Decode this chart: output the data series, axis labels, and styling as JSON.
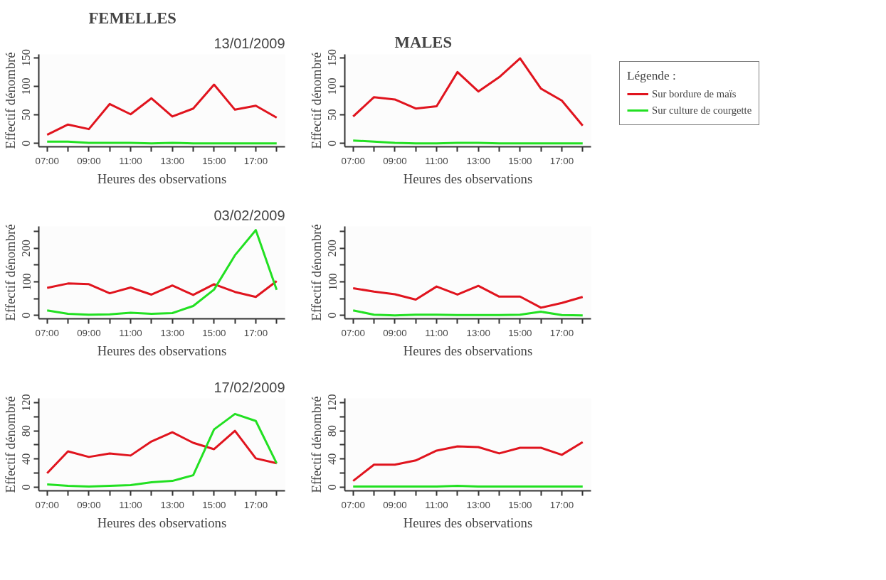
{
  "chart_data": [
    {
      "type": "line",
      "title": "FEMELLES",
      "subtitle": "13/01/2009",
      "xlabel": "Heures des observations",
      "ylabel": "Effectif dénombré",
      "x": [
        7,
        8,
        9,
        10,
        11,
        12,
        13,
        14,
        15,
        16,
        17,
        18
      ],
      "xlim": [
        6.6,
        18.4
      ],
      "xticks": [
        {
          "value": 7,
          "label": "07:00"
        },
        {
          "value": 8,
          "label": null
        },
        {
          "value": 9,
          "label": "09:00"
        },
        {
          "value": 10,
          "label": null
        },
        {
          "value": 11,
          "label": "11:00"
        },
        {
          "value": 12,
          "label": null
        },
        {
          "value": 13,
          "label": "13:00"
        },
        {
          "value": 14,
          "label": null
        },
        {
          "value": 15,
          "label": "15:00"
        },
        {
          "value": 16,
          "label": null
        },
        {
          "value": 17,
          "label": "17:00"
        },
        {
          "value": 18,
          "label": null
        }
      ],
      "ylim": [
        -6,
        156
      ],
      "yticks": [
        0,
        50,
        100,
        150
      ],
      "series": [
        {
          "color": "#e0141e",
          "values": [
            15,
            33,
            25,
            69,
            51,
            79,
            47,
            61,
            103,
            59,
            66,
            45
          ]
        },
        {
          "color": "#22e022",
          "values": [
            3,
            3,
            1,
            1,
            1,
            0,
            1,
            0,
            0,
            0,
            0,
            0
          ]
        }
      ]
    },
    {
      "type": "line",
      "title": "MALES",
      "xlabel": "Heures des observations",
      "ylabel": "Effectif dénombré",
      "legend": "right",
      "legend_title": "Légende :",
      "x": [
        7,
        8,
        9,
        10,
        11,
        12,
        13,
        14,
        15,
        16,
        17,
        18
      ],
      "xlim": [
        6.6,
        18.4
      ],
      "xticks": [
        {
          "value": 7,
          "label": "07:00"
        },
        {
          "value": 8,
          "label": null
        },
        {
          "value": 9,
          "label": "09:00"
        },
        {
          "value": 10,
          "label": null
        },
        {
          "value": 11,
          "label": "11:00"
        },
        {
          "value": 12,
          "label": null
        },
        {
          "value": 13,
          "label": "13:00"
        },
        {
          "value": 14,
          "label": null
        },
        {
          "value": 15,
          "label": "15:00"
        },
        {
          "value": 16,
          "label": null
        },
        {
          "value": 17,
          "label": "17:00"
        },
        {
          "value": 18,
          "label": null
        }
      ],
      "ylim": [
        -6,
        156
      ],
      "yticks": [
        0,
        50,
        100,
        150
      ],
      "series": [
        {
          "name": "Sur bordure de maïs",
          "color": "#e0141e",
          "values": [
            47,
            81,
            77,
            61,
            65,
            125,
            91,
            116,
            149,
            96,
            75,
            31
          ]
        },
        {
          "name": "Sur culture de courgette",
          "color": "#22e022",
          "values": [
            5,
            3,
            1,
            0,
            0,
            1,
            1,
            0,
            0,
            0,
            0,
            0
          ]
        }
      ]
    },
    {
      "type": "line",
      "subtitle": "03/02/2009",
      "xlabel": "Heures des observations",
      "ylabel": "Effectif dénombré",
      "x": [
        7,
        8,
        9,
        10,
        11,
        12,
        13,
        14,
        15,
        16,
        17,
        18
      ],
      "xlim": [
        6.6,
        18.4
      ],
      "xticks": [
        {
          "value": 7,
          "label": "07:00"
        },
        {
          "value": 8,
          "label": null
        },
        {
          "value": 9,
          "label": "09:00"
        },
        {
          "value": 10,
          "label": null
        },
        {
          "value": 11,
          "label": "11:00"
        },
        {
          "value": 12,
          "label": null
        },
        {
          "value": 13,
          "label": "13:00"
        },
        {
          "value": 14,
          "label": null
        },
        {
          "value": 15,
          "label": "15:00"
        },
        {
          "value": 16,
          "label": null
        },
        {
          "value": 17,
          "label": "17:00"
        },
        {
          "value": 18,
          "label": null
        }
      ],
      "ylim": [
        -10,
        265
      ],
      "yticks": [
        0,
        {
          "value": 50,
          "label": null
        },
        100,
        {
          "value": 150,
          "label": null
        },
        200,
        {
          "value": 250,
          "label": null
        }
      ],
      "series": [
        {
          "color": "#e0141e",
          "values": [
            82,
            95,
            93,
            66,
            83,
            62,
            89,
            61,
            93,
            70,
            55,
            102
          ]
        },
        {
          "color": "#22e022",
          "values": [
            15,
            5,
            2,
            3,
            8,
            5,
            7,
            28,
            77,
            179,
            254,
            76
          ]
        }
      ]
    },
    {
      "type": "line",
      "xlabel": "Heures des observations",
      "ylabel": "Effectif dénombré",
      "x": [
        7,
        8,
        9,
        10,
        11,
        12,
        13,
        14,
        15,
        16,
        17,
        18
      ],
      "xlim": [
        6.6,
        18.4
      ],
      "xticks": [
        {
          "value": 7,
          "label": "07:00"
        },
        {
          "value": 8,
          "label": null
        },
        {
          "value": 9,
          "label": "09:00"
        },
        {
          "value": 10,
          "label": null
        },
        {
          "value": 11,
          "label": "11:00"
        },
        {
          "value": 12,
          "label": null
        },
        {
          "value": 13,
          "label": "13:00"
        },
        {
          "value": 14,
          "label": null
        },
        {
          "value": 15,
          "label": "15:00"
        },
        {
          "value": 16,
          "label": null
        },
        {
          "value": 17,
          "label": "17:00"
        },
        {
          "value": 18,
          "label": null
        }
      ],
      "ylim": [
        -10,
        265
      ],
      "yticks": [
        0,
        {
          "value": 50,
          "label": null
        },
        100,
        {
          "value": 150,
          "label": null
        },
        200,
        {
          "value": 250,
          "label": null
        }
      ],
      "series": [
        {
          "color": "#e0141e",
          "values": [
            81,
            71,
            63,
            47,
            86,
            62,
            88,
            56,
            56,
            23,
            37,
            55
          ]
        },
        {
          "color": "#22e022",
          "values": [
            15,
            2,
            0,
            2,
            2,
            1,
            1,
            1,
            2,
            11,
            1,
            0
          ]
        }
      ]
    },
    {
      "type": "line",
      "subtitle": "17/02/2009",
      "xlabel": "Heures des observations",
      "ylabel": "Effectif dénombré",
      "x": [
        7,
        8,
        9,
        10,
        11,
        12,
        13,
        14,
        15,
        16,
        17,
        18
      ],
      "xlim": [
        6.6,
        18.4
      ],
      "xticks": [
        {
          "value": 7,
          "label": "07:00"
        },
        {
          "value": 8,
          "label": null
        },
        {
          "value": 9,
          "label": "09:00"
        },
        {
          "value": 10,
          "label": null
        },
        {
          "value": 11,
          "label": "11:00"
        },
        {
          "value": 12,
          "label": null
        },
        {
          "value": 13,
          "label": "13:00"
        },
        {
          "value": 14,
          "label": null
        },
        {
          "value": 15,
          "label": "15:00"
        },
        {
          "value": 16,
          "label": null
        },
        {
          "value": 17,
          "label": "17:00"
        },
        {
          "value": 18,
          "label": null
        }
      ],
      "ylim": [
        -5,
        126
      ],
      "yticks": [
        0,
        {
          "value": 20,
          "label": null
        },
        40,
        {
          "value": 60,
          "label": null
        },
        80,
        {
          "value": 100,
          "label": null
        },
        120
      ],
      "series": [
        {
          "color": "#e0141e",
          "values": [
            20,
            51,
            43,
            48,
            45,
            65,
            78,
            63,
            54,
            80,
            41,
            34
          ]
        },
        {
          "color": "#22e022",
          "values": [
            4,
            2,
            1,
            2,
            3,
            7,
            9,
            17,
            82,
            104,
            94,
            34
          ]
        }
      ]
    },
    {
      "type": "line",
      "xlabel": "Heures des observations",
      "ylabel": "Effectif dénombré",
      "x": [
        7,
        8,
        9,
        10,
        11,
        12,
        13,
        14,
        15,
        16,
        17,
        18
      ],
      "xlim": [
        6.6,
        18.4
      ],
      "xticks": [
        {
          "value": 7,
          "label": "07:00"
        },
        {
          "value": 8,
          "label": null
        },
        {
          "value": 9,
          "label": "09:00"
        },
        {
          "value": 10,
          "label": null
        },
        {
          "value": 11,
          "label": "11:00"
        },
        {
          "value": 12,
          "label": null
        },
        {
          "value": 13,
          "label": "13:00"
        },
        {
          "value": 14,
          "label": null
        },
        {
          "value": 15,
          "label": "15:00"
        },
        {
          "value": 16,
          "label": null
        },
        {
          "value": 17,
          "label": "17:00"
        },
        {
          "value": 18,
          "label": null
        }
      ],
      "ylim": [
        -5,
        126
      ],
      "yticks": [
        0,
        {
          "value": 20,
          "label": null
        },
        40,
        {
          "value": 60,
          "label": null
        },
        80,
        {
          "value": 100,
          "label": null
        },
        120
      ],
      "series": [
        {
          "color": "#e0141e",
          "values": [
            9,
            32,
            32,
            38,
            52,
            58,
            57,
            48,
            56,
            56,
            46,
            64
          ]
        },
        {
          "color": "#22e022",
          "values": [
            1,
            1,
            1,
            1,
            1,
            2,
            1,
            1,
            1,
            1,
            1,
            1
          ]
        }
      ]
    }
  ]
}
